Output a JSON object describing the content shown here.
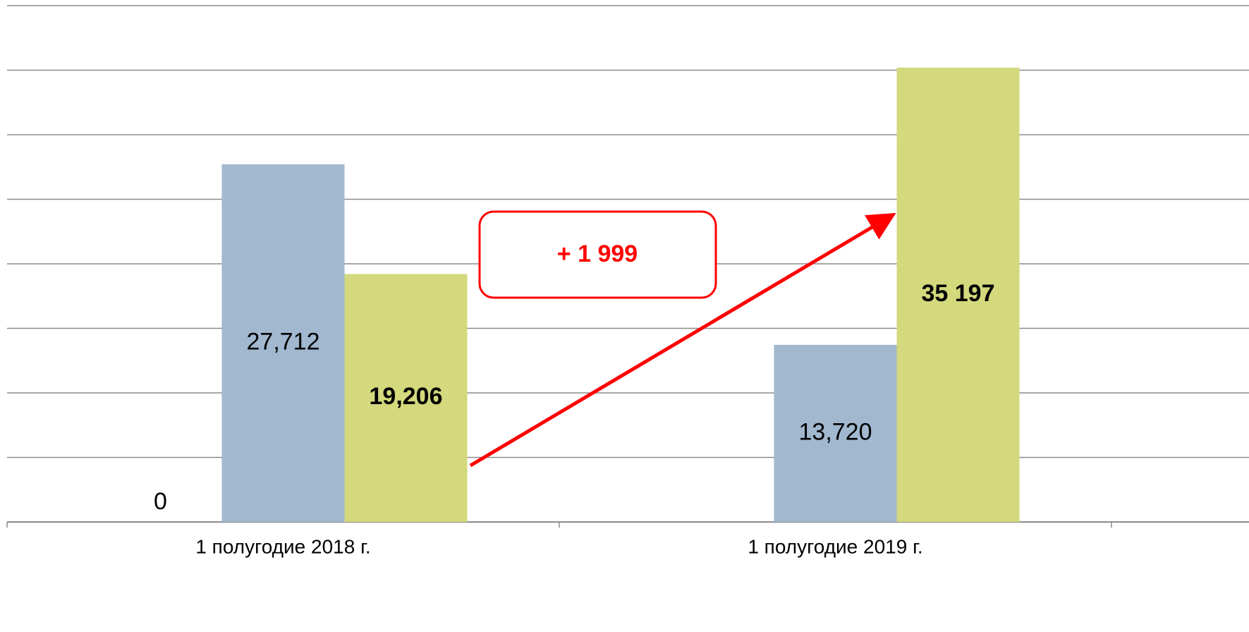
{
  "chart_data": {
    "type": "bar",
    "categories": [
      "1 полугодие  2018 г.",
      "1 полугодие  2019 г."
    ],
    "series": [
      {
        "color": "#a1b8cf",
        "values": [
          0,
          null
        ],
        "value_labels": [
          "0",
          null
        ]
      },
      {
        "color": "#a1b8cf",
        "values": [
          27712,
          13720
        ],
        "value_labels": [
          "27,712",
          "13,720"
        ]
      },
      {
        "color": "#d3d97c",
        "values": [
          19206,
          35197
        ],
        "value_labels": [
          "19,206",
          "35 197"
        ],
        "bold_labels": true
      }
    ],
    "ylim": [
      0,
      40000
    ],
    "yticks": [
      0,
      5000,
      10000,
      15000,
      20000,
      25000,
      30000,
      35000,
      40000
    ],
    "grid": true,
    "annotation": "+ 1 999",
    "annotation_color": "#ff0000"
  }
}
